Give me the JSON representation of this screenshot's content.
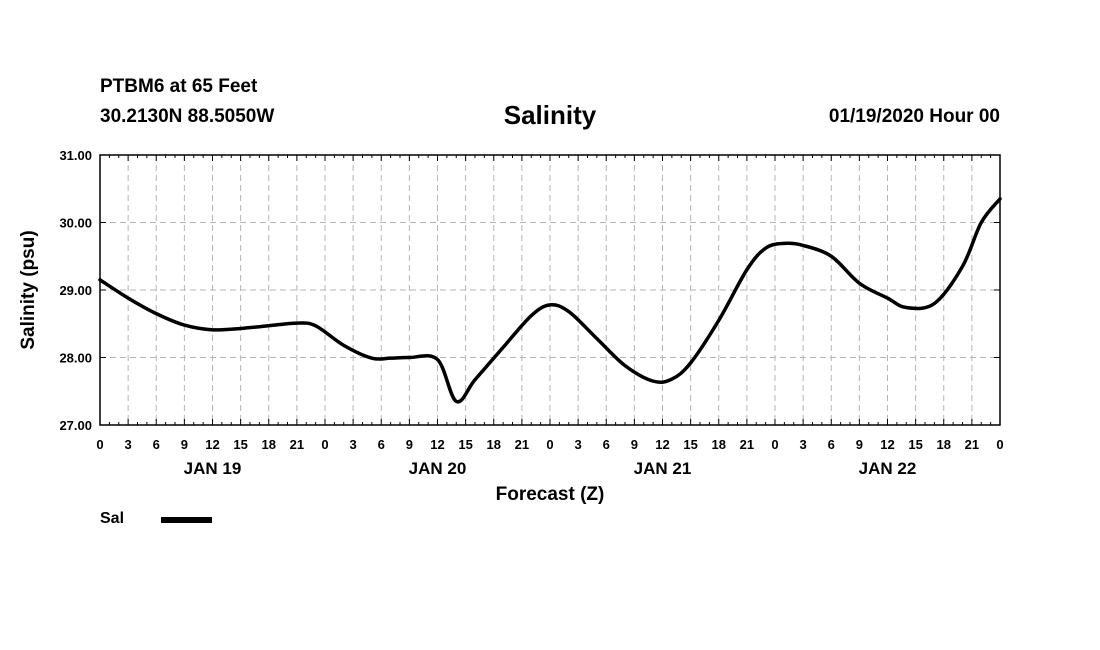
{
  "header": {
    "station": "PTBM6 at 65 Feet",
    "coordinates": "30.2130N 88.5050W",
    "title": "Salinity",
    "datetime": "01/19/2020 Hour 00"
  },
  "legend": {
    "label": "Sal"
  },
  "chart_data": {
    "type": "line",
    "title": "Salinity",
    "xlabel": "Forecast (Z)",
    "ylabel": "Salinity (psu)",
    "ylim": [
      27.0,
      31.0
    ],
    "xlim_hours": [
      0,
      96
    ],
    "y_ticks": [
      "27.00",
      "28.00",
      "29.00",
      "30.00",
      "31.00"
    ],
    "x_tick_labels": [
      "0",
      "3",
      "6",
      "9",
      "12",
      "15",
      "18",
      "21",
      "0",
      "3",
      "6",
      "9",
      "12",
      "15",
      "18",
      "21",
      "0",
      "3",
      "6",
      "9",
      "12",
      "15",
      "18",
      "21",
      "0",
      "3",
      "6",
      "9",
      "12",
      "15",
      "18",
      "21",
      "0"
    ],
    "day_labels": [
      {
        "label": "JAN 19",
        "hour": 12
      },
      {
        "label": "JAN 20",
        "hour": 36
      },
      {
        "label": "JAN 21",
        "hour": 60
      },
      {
        "label": "JAN 22",
        "hour": 84
      }
    ],
    "grid": true,
    "series": [
      {
        "name": "Sal",
        "color": "#000000",
        "x": [
          0,
          3,
          6,
          9,
          12,
          15,
          18,
          21,
          23,
          26,
          29,
          31,
          33,
          36,
          38,
          40,
          43,
          46,
          48,
          50,
          53,
          56,
          59,
          61,
          63,
          66,
          69,
          71,
          73,
          75,
          78,
          81,
          84,
          86,
          89,
          92,
          94,
          96
        ],
        "values": [
          29.15,
          28.88,
          28.65,
          28.48,
          28.41,
          28.43,
          28.47,
          28.51,
          28.47,
          28.18,
          27.99,
          27.99,
          28.0,
          27.97,
          27.35,
          27.67,
          28.15,
          28.62,
          28.78,
          28.68,
          28.28,
          27.88,
          27.65,
          27.68,
          27.92,
          28.55,
          29.3,
          29.62,
          29.69,
          29.66,
          29.5,
          29.1,
          28.88,
          28.74,
          28.8,
          29.35,
          30.0,
          30.35
        ]
      }
    ]
  }
}
